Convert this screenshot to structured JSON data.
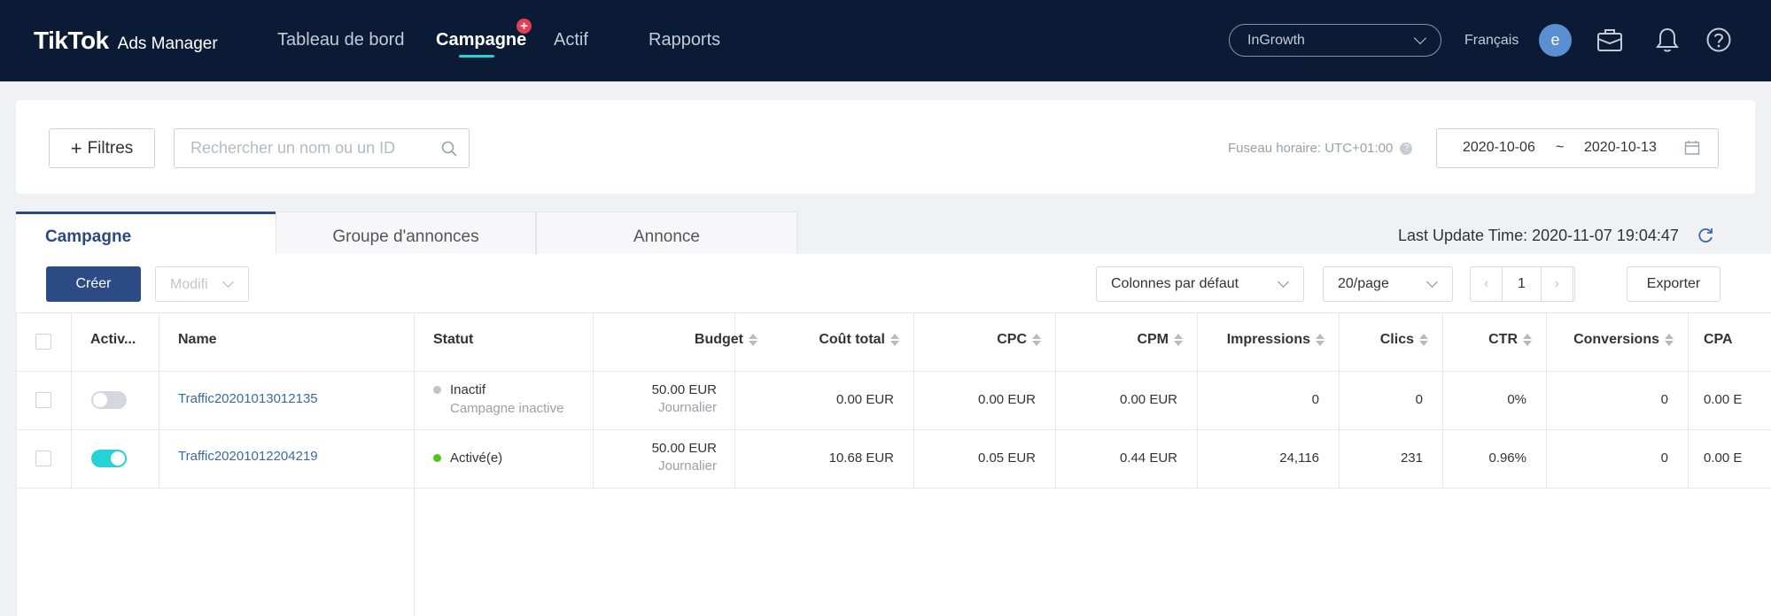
{
  "app": {
    "brand": "TikTok",
    "product": "Ads Manager"
  },
  "nav": {
    "items": [
      {
        "label": "Tableau de bord"
      },
      {
        "label": "Campagne"
      },
      {
        "label": "Actif"
      },
      {
        "label": "Rapports"
      }
    ],
    "active_index": 1,
    "campagne_badge": "+"
  },
  "header": {
    "account": "InGrowth",
    "language": "Français",
    "avatar_letter": "e",
    "icons": [
      "briefcase-icon",
      "bell-icon",
      "help-icon"
    ]
  },
  "filters": {
    "button_label": "Filtres",
    "search_placeholder": "Rechercher un nom ou un ID",
    "timezone": "Fuseau horaire: UTC+01:00",
    "date_start": "2020-10-06",
    "date_separator": "~",
    "date_end": "2020-10-13"
  },
  "tabs": [
    {
      "label": "Campagne"
    },
    {
      "label": "Groupe d'annonces"
    },
    {
      "label": "Annonce"
    }
  ],
  "last_update": "Last Update Time: 2020-11-07 19:04:47",
  "toolbar": {
    "create_label": "Créer",
    "modify_label": "Modifi",
    "columns_label": "Colonnes par défaut",
    "page_size_label": "20/page",
    "page_number": "1",
    "export_label": "Exporter"
  },
  "table": {
    "headers": {
      "active": "Activ...",
      "name": "Name",
      "status": "Statut",
      "budget": "Budget",
      "cost": "Coût total",
      "cpc": "CPC",
      "cpm": "CPM",
      "impressions": "Impressions",
      "clicks": "Clics",
      "ctr": "CTR",
      "conversions": "Conversions",
      "cpa": "CPA"
    },
    "rows": [
      {
        "toggle_on": false,
        "name": "Traffic20201013012135",
        "status": "Inactif",
        "status_sub": "Campagne inactive",
        "status_color": "#c0c3c9",
        "budget": "50.00 EUR",
        "budget_type": "Journalier",
        "cost": "0.00 EUR",
        "cpc": "0.00 EUR",
        "cpm": "0.00 EUR",
        "impressions": "0",
        "clicks": "0",
        "ctr": "0%",
        "conversions": "0",
        "cpa": "0.00 E"
      },
      {
        "toggle_on": true,
        "name": "Traffic20201012204219",
        "status": "Activé(e)",
        "status_sub": "",
        "status_color": "#52c41a",
        "budget": "50.00 EUR",
        "budget_type": "Journalier",
        "cost": "10.68 EUR",
        "cpc": "0.05 EUR",
        "cpm": "0.44 EUR",
        "impressions": "24,116",
        "clicks": "231",
        "ctr": "0.96%",
        "conversions": "0",
        "cpa": "0.00 E"
      }
    ]
  },
  "colors": {
    "topbar": "#0c1b35",
    "primary": "#2c4b85",
    "accent": "#25d2d8",
    "badge": "#e53d53",
    "link": "#3a6aa3"
  }
}
